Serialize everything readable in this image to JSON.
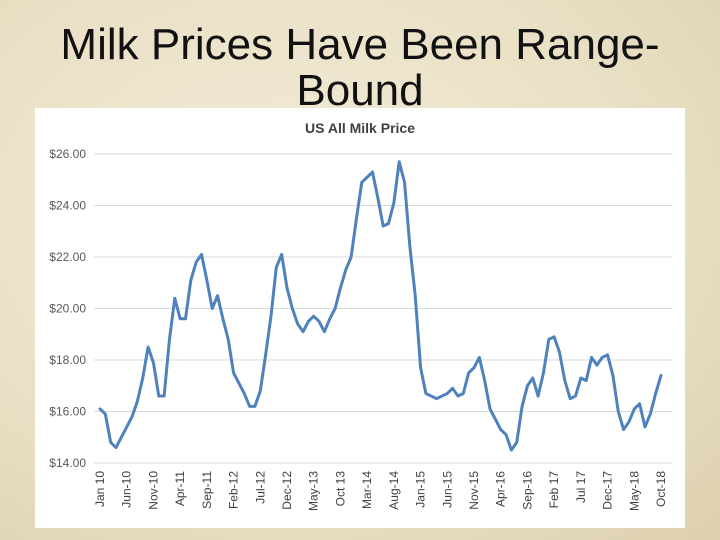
{
  "slide_title": "Milk Prices Have Been Range-Bound",
  "chart_data": {
    "type": "line",
    "title": "US All Milk Price",
    "categories": [
      "Jan 10",
      null,
      null,
      null,
      null,
      "Jun-10",
      null,
      null,
      null,
      null,
      "Nov-10",
      null,
      null,
      null,
      null,
      "Apr-11",
      null,
      null,
      null,
      null,
      "Sep-11",
      null,
      null,
      null,
      null,
      "Feb-12",
      null,
      null,
      null,
      null,
      "Jul-12",
      null,
      null,
      null,
      null,
      "Dec-12",
      null,
      null,
      null,
      null,
      "May-13",
      null,
      null,
      null,
      null,
      "Oct 13",
      null,
      null,
      null,
      null,
      "Mar-14",
      null,
      null,
      null,
      null,
      "Aug-14",
      null,
      null,
      null,
      null,
      "Jan-15",
      null,
      null,
      null,
      null,
      "Jun-15",
      null,
      null,
      null,
      null,
      "Nov-15",
      null,
      null,
      null,
      null,
      "Apr-16",
      null,
      null,
      null,
      null,
      "Sep-16",
      null,
      null,
      null,
      null,
      "Feb 17",
      null,
      null,
      null,
      null,
      "Jul 17",
      null,
      null,
      null,
      null,
      "Dec-17",
      null,
      null,
      null,
      null,
      "May-18",
      null,
      null,
      null,
      null,
      "Oct-18"
    ],
    "values": [
      16.1,
      15.9,
      14.8,
      14.6,
      15.0,
      15.4,
      15.8,
      16.4,
      17.3,
      18.5,
      17.9,
      16.6,
      16.6,
      18.8,
      20.4,
      19.6,
      19.6,
      21.1,
      21.8,
      22.1,
      21.1,
      20.0,
      20.5,
      19.6,
      18.8,
      17.5,
      17.1,
      16.7,
      16.2,
      16.2,
      16.8,
      18.2,
      19.7,
      21.6,
      22.1,
      20.8,
      20.0,
      19.4,
      19.1,
      19.5,
      19.7,
      19.5,
      19.1,
      19.6,
      20.0,
      20.8,
      21.5,
      22.0,
      23.5,
      24.9,
      25.1,
      25.3,
      24.3,
      23.2,
      23.3,
      24.1,
      25.7,
      24.9,
      22.4,
      20.5,
      17.7,
      16.7,
      16.6,
      16.5,
      16.6,
      16.7,
      16.9,
      16.6,
      16.7,
      17.5,
      17.7,
      18.1,
      17.2,
      16.1,
      15.7,
      15.3,
      15.1,
      14.5,
      14.8,
      16.2,
      17.0,
      17.3,
      16.6,
      17.5,
      18.8,
      18.9,
      18.3,
      17.2,
      16.5,
      16.6,
      17.3,
      17.2,
      18.1,
      17.8,
      18.1,
      18.2,
      17.4,
      16.0,
      15.3,
      15.6,
      16.1,
      16.3,
      15.4,
      15.9,
      16.7,
      17.4
    ],
    "color": "#4f81bd",
    "ylim": [
      14,
      26
    ],
    "yticks": [
      {
        "value": 14,
        "label": "$14.00"
      },
      {
        "value": 16,
        "label": "$16.00"
      },
      {
        "value": 18,
        "label": "$18.00"
      },
      {
        "value": 20,
        "label": "$20.00"
      },
      {
        "value": 22,
        "label": "$22.00"
      },
      {
        "value": 24,
        "label": "$24.00"
      },
      {
        "value": 26,
        "label": "$26.00"
      }
    ],
    "grid": true
  }
}
